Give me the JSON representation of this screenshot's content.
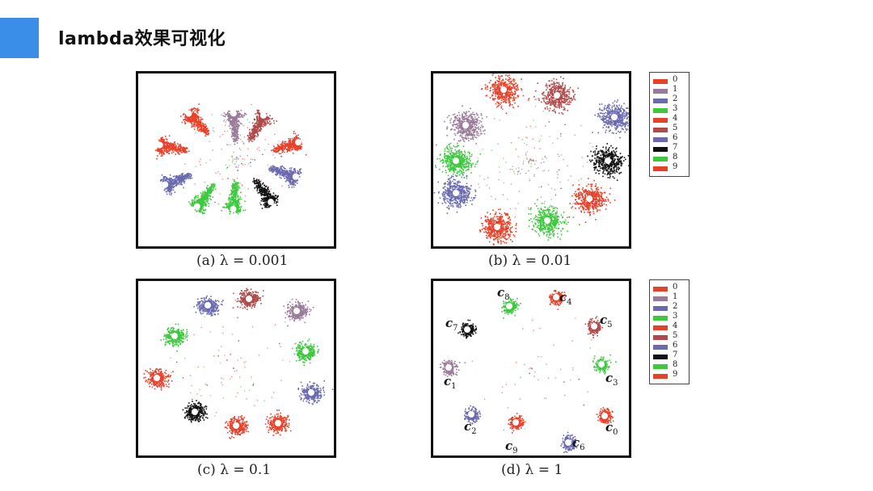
{
  "slide": {
    "title": "lambda效果可视化",
    "accent_color": "#3b8ee8"
  },
  "figure": {
    "panels": [
      {
        "id": "a",
        "caption": "(a)  λ = 0.001"
      },
      {
        "id": "b",
        "caption": "(b)  λ = 0.01"
      },
      {
        "id": "c",
        "caption": "(c)  λ = 0.1"
      },
      {
        "id": "d",
        "caption": "(d)  λ = 1"
      }
    ],
    "legend": {
      "labels": [
        "0",
        "1",
        "2",
        "3",
        "4",
        "5",
        "6",
        "7",
        "8",
        "9"
      ],
      "colors": [
        "#e8412a",
        "#9a7a9a",
        "#6a6ab0",
        "#3ec83e",
        "#e8412a",
        "#b04a4a",
        "#6a6ab0",
        "#111111",
        "#3ec83e",
        "#e8412a"
      ]
    },
    "center_labels": [
      {
        "letter": "c",
        "sub": "0"
      },
      {
        "letter": "c",
        "sub": "1"
      },
      {
        "letter": "c",
        "sub": "2"
      },
      {
        "letter": "c",
        "sub": "3"
      },
      {
        "letter": "c",
        "sub": "4"
      },
      {
        "letter": "c",
        "sub": "5"
      },
      {
        "letter": "c",
        "sub": "6"
      },
      {
        "letter": "c",
        "sub": "7"
      },
      {
        "letter": "c",
        "sub": "8"
      },
      {
        "letter": "c",
        "sub": "9"
      }
    ]
  }
}
